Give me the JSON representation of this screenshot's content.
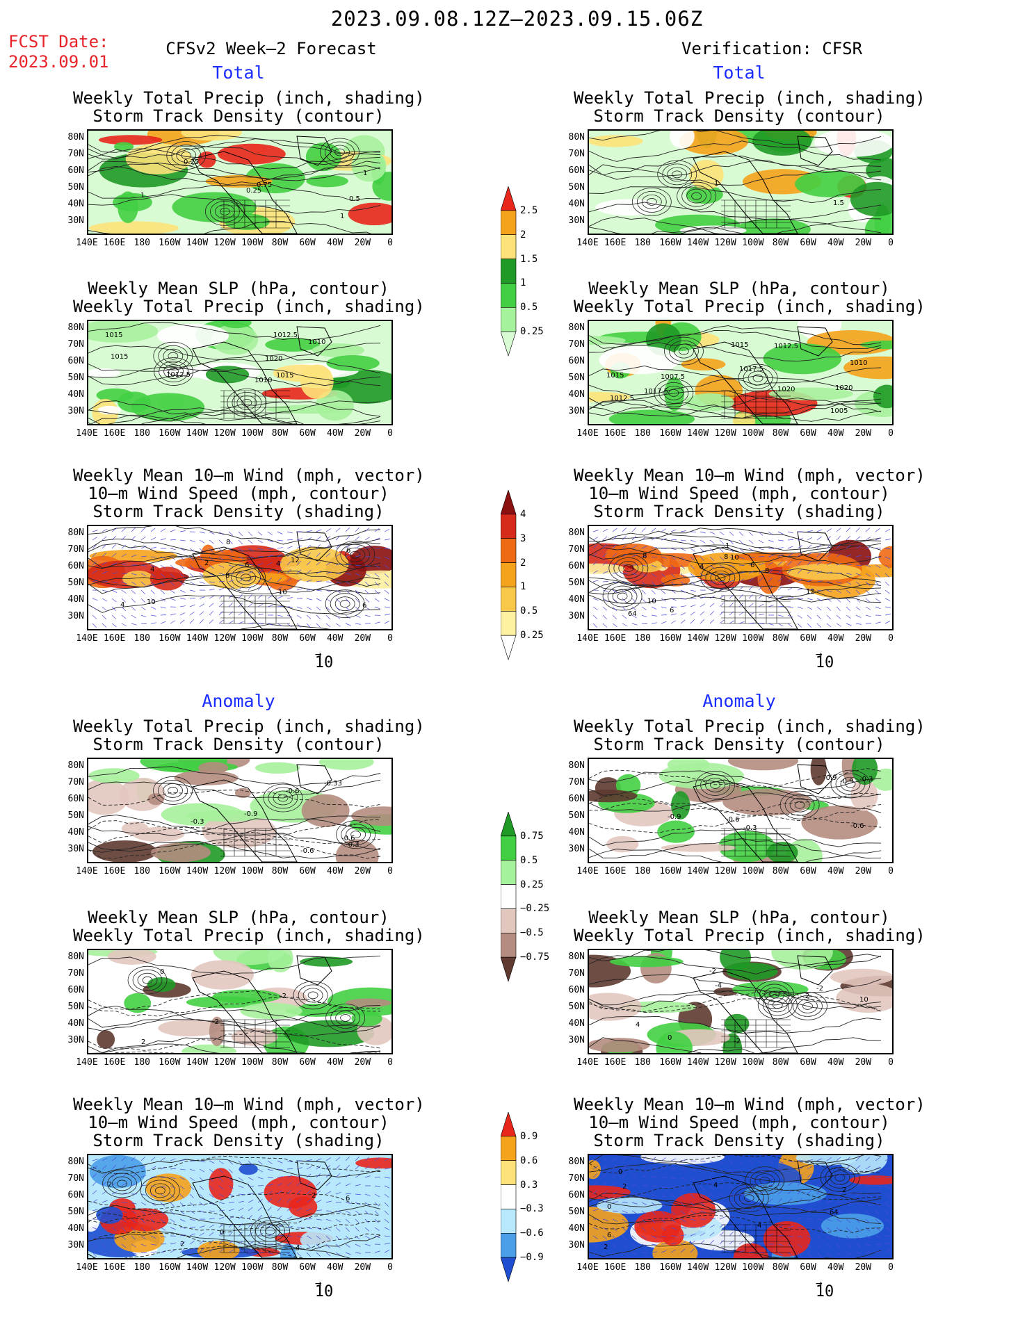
{
  "title": "2023.09.08.12Z–2023.09.15.06Z",
  "fcst_date_label": "FCST Date:",
  "fcst_date_value": "2023.09.01",
  "left_header": "CFSv2 Week–2 Forecast",
  "right_header": "Verification: CFSR",
  "sections": {
    "total": "Total",
    "anomaly": "Anomaly"
  },
  "panel_titles": {
    "precip_storm": [
      "Weekly Total Precip (inch, shading)",
      "Storm Track Density (contour)"
    ],
    "slp_precip": [
      "Weekly Mean SLP (hPa, contour)",
      "Weekly Total Precip (inch, shading)"
    ],
    "wind": [
      "Weekly Mean 10–m Wind (mph, vector)",
      "10–m Wind Speed (mph, contour)",
      "Storm Track Density (shading)"
    ]
  },
  "axes": {
    "lat_labels": [
      "80N",
      "70N",
      "60N",
      "50N",
      "40N",
      "30N"
    ],
    "lon_labels": [
      "140E",
      "160E",
      "180",
      "160W",
      "140W",
      "120W",
      "100W",
      "80W",
      "60W",
      "40W",
      "20W",
      "0"
    ]
  },
  "vector_ref": "10",
  "colorbars": {
    "precip_total": {
      "labels": [
        "2.5",
        "2",
        "1.5",
        "1",
        "0.5",
        "0.25"
      ],
      "colors": [
        "#e8261c",
        "#f5a21c",
        "#fde27a",
        "#1f9a26",
        "#43cf43",
        "#a6f19c",
        "#d9fbd3"
      ]
    },
    "storm_total": {
      "labels": [
        "4",
        "3",
        "2",
        "1",
        "0.5",
        "0.25"
      ],
      "colors": [
        "#8b1010",
        "#d62a1a",
        "#ee6a14",
        "#f5a21c",
        "#f8c84a",
        "#fdf0a0",
        "#ffffff"
      ]
    },
    "precip_anom": {
      "labels": [
        "0.75",
        "0.5",
        "0.25",
        "−0.25",
        "−0.5",
        "−0.75"
      ],
      "colors": [
        "#1f9a26",
        "#43cf43",
        "#a6f19c",
        "#ffffff",
        "#e2c7bf",
        "#b48c80",
        "#5e3a30"
      ]
    },
    "storm_anom": {
      "labels": [
        "0.9",
        "0.6",
        "0.3",
        "−0.3",
        "−0.6",
        "−0.9"
      ],
      "colors": [
        "#e8261c",
        "#f5a21c",
        "#fde27a",
        "#ffffff",
        "#b8e8fb",
        "#4a9fe8",
        "#1f4fd0"
      ]
    }
  },
  "contour_labels": {
    "L_prec_tot": [
      "1",
      "0.25",
      "0.5",
      "1",
      "0.75",
      "1",
      "0.25"
    ],
    "R_prec_tot": [
      "1",
      "1.5"
    ],
    "L_slp_tot": [
      "1015",
      "1012.5",
      "1012.5",
      "1010",
      "1015",
      "1010",
      "1015",
      "1020"
    ],
    "R_slp_tot": [
      "1010",
      "1007.5",
      "1005",
      "1015",
      "1012.5",
      "1020",
      "1012.5",
      "1017.5",
      "1015",
      "1020",
      "1017.5"
    ],
    "L_wind_tot": [
      "4",
      "6",
      "6",
      "4",
      "8",
      "10",
      "8",
      "12",
      "10",
      "6",
      "4",
      "2"
    ],
    "R_wind_tot": [
      "8",
      "6",
      "10",
      "4",
      "64",
      "6",
      "10",
      "8",
      "12",
      "8",
      "1"
    ],
    "L_prec_anom": [
      "-0.6",
      "-0.3",
      "-0.33",
      "-0.9",
      "-0.6",
      "-0.6",
      "-0.3"
    ],
    "R_prec_anom": [
      "-0.3",
      "-0.9",
      "-0.6",
      "-0.9",
      "-0.3",
      "-0.9",
      "-0.6"
    ],
    "L_slp_anom": [
      "0",
      "-2",
      "2",
      "-2"
    ],
    "R_slp_anom": [
      "-2",
      "0",
      "2",
      "4",
      "10",
      "-4",
      "-2",
      "-2"
    ],
    "L_wind_anom": [
      "4",
      "2",
      "0",
      "2",
      "2",
      "6"
    ],
    "R_wind_anom": [
      "6",
      "4",
      "2",
      "2",
      "4",
      "0",
      "64",
      "2",
      "0"
    ]
  }
}
